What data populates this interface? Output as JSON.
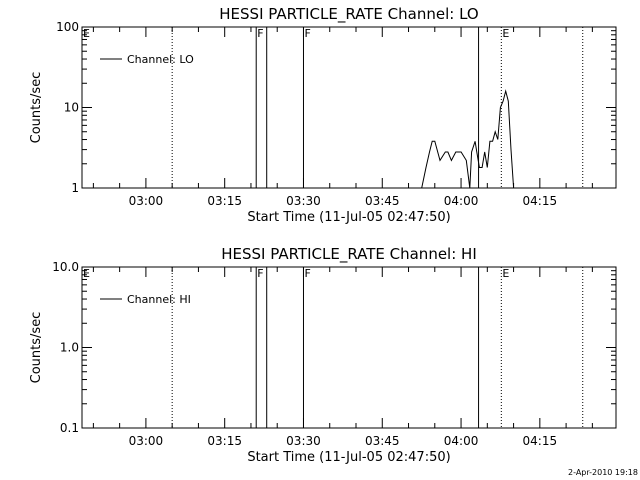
{
  "chart_data": [
    {
      "type": "line",
      "title": "HESSI PARTICLE_RATE Channel: LO",
      "xlabel": "Start Time (11-Jul-05 02:47:50)",
      "ylabel": "Counts/sec",
      "yscale": "log",
      "ylim": [
        1,
        100
      ],
      "xlim": [
        "02:47:50",
        "04:29:30"
      ],
      "x_ticks": [
        "03:00",
        "03:15",
        "03:30",
        "03:45",
        "04:00",
        "04:15"
      ],
      "y_ticks": [
        "1",
        "10",
        "100"
      ],
      "grid": false,
      "legend": {
        "position": "top-left",
        "entries": [
          "Channel: LO"
        ]
      },
      "series": [
        {
          "name": "Channel: LO",
          "x": [
            "03:52:30",
            "03:53:20",
            "03:54:00",
            "03:54:30",
            "03:55:00",
            "03:56:00",
            "03:57:00",
            "03:57:30",
            "03:58:10",
            "03:59:00",
            "04:00:00",
            "04:01:00",
            "04:01:40",
            "04:02:00",
            "04:02:40",
            "04:03:00",
            "04:03:30",
            "04:04:00",
            "04:04:30",
            "04:05:00",
            "04:05:30",
            "04:06:00",
            "04:06:30",
            "04:07:00",
            "04:07:30",
            "04:08:00",
            "04:08:30",
            "04:09:00",
            "04:09:30",
            "04:10:00"
          ],
          "values": [
            1.0,
            1.8,
            2.8,
            3.8,
            3.8,
            2.2,
            2.8,
            2.8,
            2.2,
            2.8,
            2.8,
            2.2,
            1.0,
            2.8,
            3.8,
            2.8,
            1.8,
            1.8,
            2.8,
            1.8,
            3.8,
            3.8,
            5.0,
            4.0,
            10.0,
            12.0,
            16.0,
            12.0,
            3.0,
            1.0
          ]
        }
      ],
      "annotations": [
        {
          "label": "E",
          "x": "02:47:50",
          "style": "dotted"
        },
        {
          "label": "",
          "x": "03:05:00",
          "style": "dotted"
        },
        {
          "label": "F",
          "x": "03:21:00",
          "style": "solid"
        },
        {
          "label": "",
          "x": "03:23:00",
          "style": "solid"
        },
        {
          "label": "F",
          "x": "03:30:00",
          "style": "solid"
        },
        {
          "label": "",
          "x": "04:03:20",
          "style": "solid"
        },
        {
          "label": "E",
          "x": "04:07:40",
          "style": "dotted"
        },
        {
          "label": "",
          "x": "04:23:10",
          "style": "dotted"
        }
      ]
    },
    {
      "type": "line",
      "title": "HESSI PARTICLE_RATE Channel: HI",
      "xlabel": "Start Time (11-Jul-05 02:47:50)",
      "ylabel": "Counts/sec",
      "yscale": "log",
      "ylim": [
        0.1,
        10.0
      ],
      "xlim": [
        "02:47:50",
        "04:29:30"
      ],
      "x_ticks": [
        "03:00",
        "03:15",
        "03:30",
        "03:45",
        "04:00",
        "04:15"
      ],
      "y_ticks": [
        "0.1",
        "1.0",
        "10.0"
      ],
      "grid": false,
      "legend": {
        "position": "top-left",
        "entries": [
          "Channel: HI"
        ]
      },
      "series": [
        {
          "name": "Channel: HI",
          "x": [],
          "values": []
        }
      ],
      "annotations": [
        {
          "label": "E",
          "x": "02:47:50",
          "style": "dotted"
        },
        {
          "label": "",
          "x": "03:05:00",
          "style": "dotted"
        },
        {
          "label": "F",
          "x": "03:21:00",
          "style": "solid"
        },
        {
          "label": "",
          "x": "03:23:00",
          "style": "solid"
        },
        {
          "label": "F",
          "x": "03:30:00",
          "style": "solid"
        },
        {
          "label": "",
          "x": "04:03:20",
          "style": "solid"
        },
        {
          "label": "E",
          "x": "04:07:40",
          "style": "dotted"
        },
        {
          "label": "",
          "x": "04:23:10",
          "style": "dotted"
        }
      ]
    }
  ],
  "footer": {
    "timestamp": "2-Apr-2010 19:18"
  }
}
